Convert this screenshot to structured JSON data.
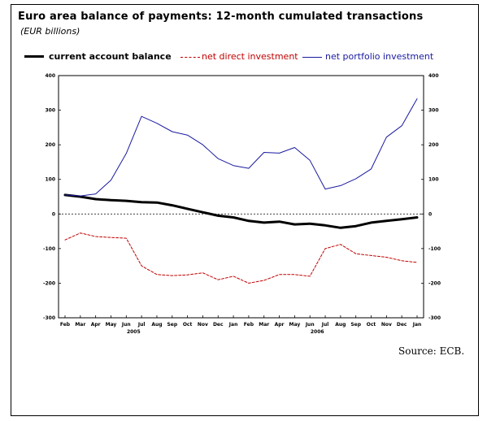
{
  "title": "Euro area balance of payments: 12-month cumulated transactions",
  "subtitle": "(EUR billions)",
  "source": "Source: ECB.",
  "chart_data": {
    "type": "line",
    "title": "Euro area balance of payments: 12-month cumulated transactions",
    "subtitle": "(EUR billions)",
    "xlabel": "",
    "ylabel": "",
    "categories": [
      "Feb",
      "Mar",
      "Apr",
      "May",
      "Jun",
      "Jul",
      "Aug",
      "Sep",
      "Oct",
      "Nov",
      "Dec",
      "Jan",
      "Feb",
      "Mar",
      "Apr",
      "May",
      "Jun",
      "Jul",
      "Aug",
      "Sep",
      "Oct",
      "Nov",
      "Dec",
      "Jan"
    ],
    "year_labels": [
      {
        "label": "2005",
        "index": 4
      },
      {
        "label": "2006",
        "index": 16
      }
    ],
    "ylim": [
      -300,
      400
    ],
    "yticks": [
      "400",
      "300",
      "200",
      "100",
      "0",
      "-100",
      "-200",
      "-300"
    ],
    "ytick_values": [
      400,
      300,
      200,
      100,
      0,
      -100,
      -200,
      -300
    ],
    "grid": false,
    "zero_line": "dashed",
    "legend_position": "top",
    "series": [
      {
        "name": "current account balance",
        "color": "#000000",
        "style": "solid-thick",
        "values": [
          55,
          50,
          43,
          40,
          38,
          34,
          33,
          25,
          15,
          5,
          -5,
          -10,
          -20,
          -25,
          -22,
          -30,
          -28,
          -33,
          -40,
          -35,
          -25,
          -20,
          -15,
          -10
        ]
      },
      {
        "name": "net direct investment",
        "color": "#c00000",
        "style": "dashed",
        "values": [
          -75,
          -55,
          -65,
          -68,
          -70,
          -150,
          -175,
          -178,
          -176,
          -170,
          -190,
          -180,
          -200,
          -192,
          -175,
          -175,
          -180,
          -100,
          -88,
          -115,
          -120,
          -125,
          -135,
          -140
        ]
      },
      {
        "name": "net portfolio investment",
        "color": "#1a1aa0",
        "style": "solid",
        "values": [
          55,
          52,
          58,
          98,
          175,
          282,
          262,
          238,
          228,
          200,
          160,
          140,
          132,
          178,
          176,
          192,
          155,
          72,
          82,
          102,
          130,
          222,
          255,
          333
        ]
      }
    ]
  }
}
